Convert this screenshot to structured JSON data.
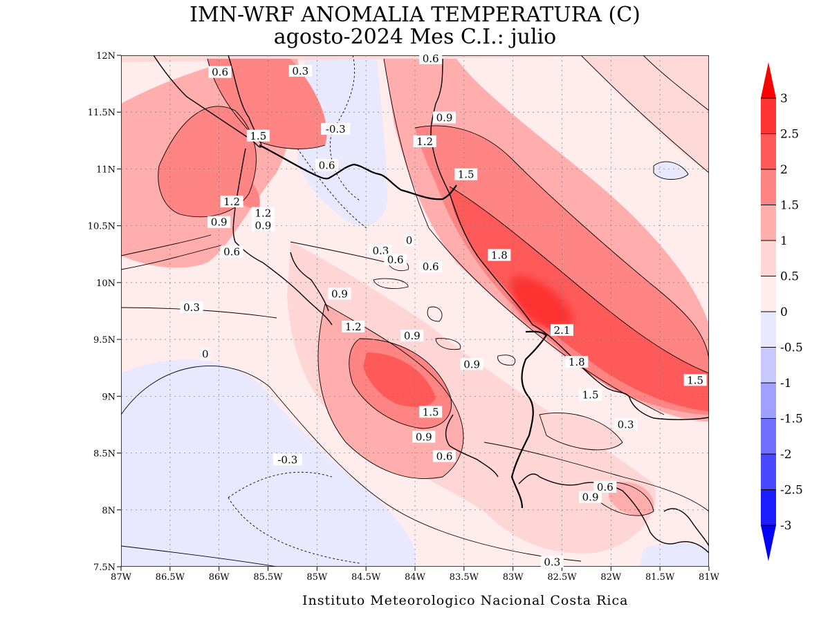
{
  "title_line1": "IMN-WRF  ANOMALIA TEMPERATURA (C)",
  "title_line2": "agosto-2024 Mes C.I.: julio",
  "footer": "Instituto Meteorologico Nacional Costa Rica",
  "axes": {
    "x_ticks": [
      "87W",
      "86.5W",
      "86W",
      "85.5W",
      "85W",
      "84.5W",
      "84W",
      "83.5W",
      "83W",
      "82.5W",
      "82W",
      "81.5W",
      "81W"
    ],
    "y_ticks": [
      "12N",
      "11.5N",
      "11N",
      "10.5N",
      "10N",
      "9.5N",
      "9N",
      "8.5N",
      "8N",
      "7.5N"
    ],
    "lon_range": [
      -87,
      -81
    ],
    "lat_range": [
      7.5,
      12
    ]
  },
  "colorbar": {
    "ticks": [
      "3",
      "2.5",
      "2",
      "1.5",
      "1",
      "0.5",
      "0",
      "-0.5",
      "-1",
      "-1.5",
      "-2",
      "-2.5",
      "-3"
    ],
    "colors": [
      "#ff0000",
      "#ff3333",
      "#ff5a5a",
      "#ff8484",
      "#ffadad",
      "#ffd6d6",
      "#ffecec",
      "#e8e8ff",
      "#c8c8ff",
      "#a0a0ff",
      "#7070ff",
      "#4848ff",
      "#1c1cff",
      "#0000ff"
    ]
  },
  "contour_labels": [
    {
      "text": "0.6",
      "lon": -85.99,
      "lat": 11.85
    },
    {
      "text": "0.3",
      "lon": -85.17,
      "lat": 11.86
    },
    {
      "text": "0.6",
      "lon": -83.84,
      "lat": 11.97
    },
    {
      "text": "0.9",
      "lon": -83.7,
      "lat": 11.45
    },
    {
      "text": "1.5",
      "lon": -85.6,
      "lat": 11.29
    },
    {
      "text": "-0.3",
      "lon": -84.81,
      "lat": 11.35
    },
    {
      "text": "1.2",
      "lon": -83.9,
      "lat": 11.24
    },
    {
      "text": "0.6",
      "lon": -84.9,
      "lat": 11.03
    },
    {
      "text": "1.5",
      "lon": -83.48,
      "lat": 10.95
    },
    {
      "text": "1.2",
      "lon": -85.87,
      "lat": 10.71
    },
    {
      "text": "1.2",
      "lon": -85.55,
      "lat": 10.61
    },
    {
      "text": "0.9",
      "lon": -86.0,
      "lat": 10.53
    },
    {
      "text": "0.9",
      "lon": -85.55,
      "lat": 10.5
    },
    {
      "text": "0.6",
      "lon": -85.87,
      "lat": 10.27
    },
    {
      "text": "0.3",
      "lon": -84.35,
      "lat": 10.28
    },
    {
      "text": "0",
      "lon": -84.06,
      "lat": 10.37
    },
    {
      "text": "0.6",
      "lon": -84.2,
      "lat": 10.2
    },
    {
      "text": "0.6",
      "lon": -83.84,
      "lat": 10.14
    },
    {
      "text": "1.8",
      "lon": -83.14,
      "lat": 10.24
    },
    {
      "text": "0.9",
      "lon": -84.77,
      "lat": 9.9
    },
    {
      "text": "0.3",
      "lon": -86.28,
      "lat": 9.78
    },
    {
      "text": "1.2",
      "lon": -84.63,
      "lat": 9.61
    },
    {
      "text": "0.9",
      "lon": -84.03,
      "lat": 9.53
    },
    {
      "text": "2.1",
      "lon": -82.5,
      "lat": 9.58
    },
    {
      "text": "0.9",
      "lon": -83.42,
      "lat": 9.28
    },
    {
      "text": "0",
      "lon": -86.14,
      "lat": 9.37
    },
    {
      "text": "1.8",
      "lon": -82.35,
      "lat": 9.3
    },
    {
      "text": "1.5",
      "lon": -81.14,
      "lat": 9.14
    },
    {
      "text": "1.5",
      "lon": -82.21,
      "lat": 9.01
    },
    {
      "text": "1.5",
      "lon": -83.84,
      "lat": 8.86
    },
    {
      "text": "0.3",
      "lon": -81.85,
      "lat": 8.75
    },
    {
      "text": "0.9",
      "lon": -83.91,
      "lat": 8.64
    },
    {
      "text": "0.6",
      "lon": -83.7,
      "lat": 8.47
    },
    {
      "text": "-0.3",
      "lon": -85.3,
      "lat": 8.44
    },
    {
      "text": "0.6",
      "lon": -82.06,
      "lat": 8.2
    },
    {
      "text": "0.9",
      "lon": -82.21,
      "lat": 8.11
    },
    {
      "text": "0.3",
      "lon": -82.6,
      "lat": 7.54
    }
  ]
}
